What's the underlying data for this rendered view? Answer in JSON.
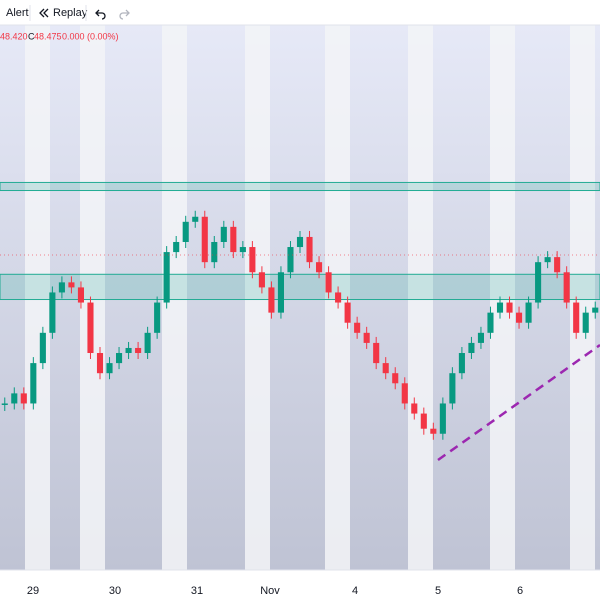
{
  "toolbar": {
    "alert": "Alert",
    "replay": "Replay"
  },
  "header": {
    "low": "48.420",
    "close_label": "C",
    "close": "48.475",
    "change": "0.000 (0.00%)"
  },
  "chart_data": {
    "type": "candlestick",
    "x_labels": [
      "29",
      "30",
      "31",
      "Nov",
      "4",
      "5",
      "6"
    ],
    "closes": [
      48.185,
      48.205,
      48.185,
      48.265,
      48.325,
      48.405,
      48.425,
      48.415,
      48.385,
      48.285,
      48.245,
      48.265,
      48.285,
      48.295,
      48.285,
      48.325,
      48.385,
      48.485,
      48.505,
      48.545,
      48.555,
      48.465,
      48.505,
      48.535,
      48.485,
      48.495,
      48.445,
      48.415,
      48.365,
      48.445,
      48.495,
      48.515,
      48.465,
      48.445,
      48.405,
      48.385,
      48.345,
      48.325,
      48.305,
      48.265,
      48.245,
      48.225,
      48.185,
      48.165,
      48.135,
      48.125,
      48.185,
      48.245,
      48.285,
      48.305,
      48.325,
      48.365,
      48.385,
      48.365,
      48.345,
      48.385,
      48.465,
      48.475,
      48.445,
      48.385,
      48.325,
      48.365,
      48.375
    ],
    "ylim": [
      47.855,
      48.935
    ],
    "zones": [
      [
        48.607,
        48.623
      ],
      [
        48.391,
        48.441
      ]
    ],
    "up_color": "#089981",
    "down_color": "#f23645",
    "zone_color": "#22ab94"
  }
}
